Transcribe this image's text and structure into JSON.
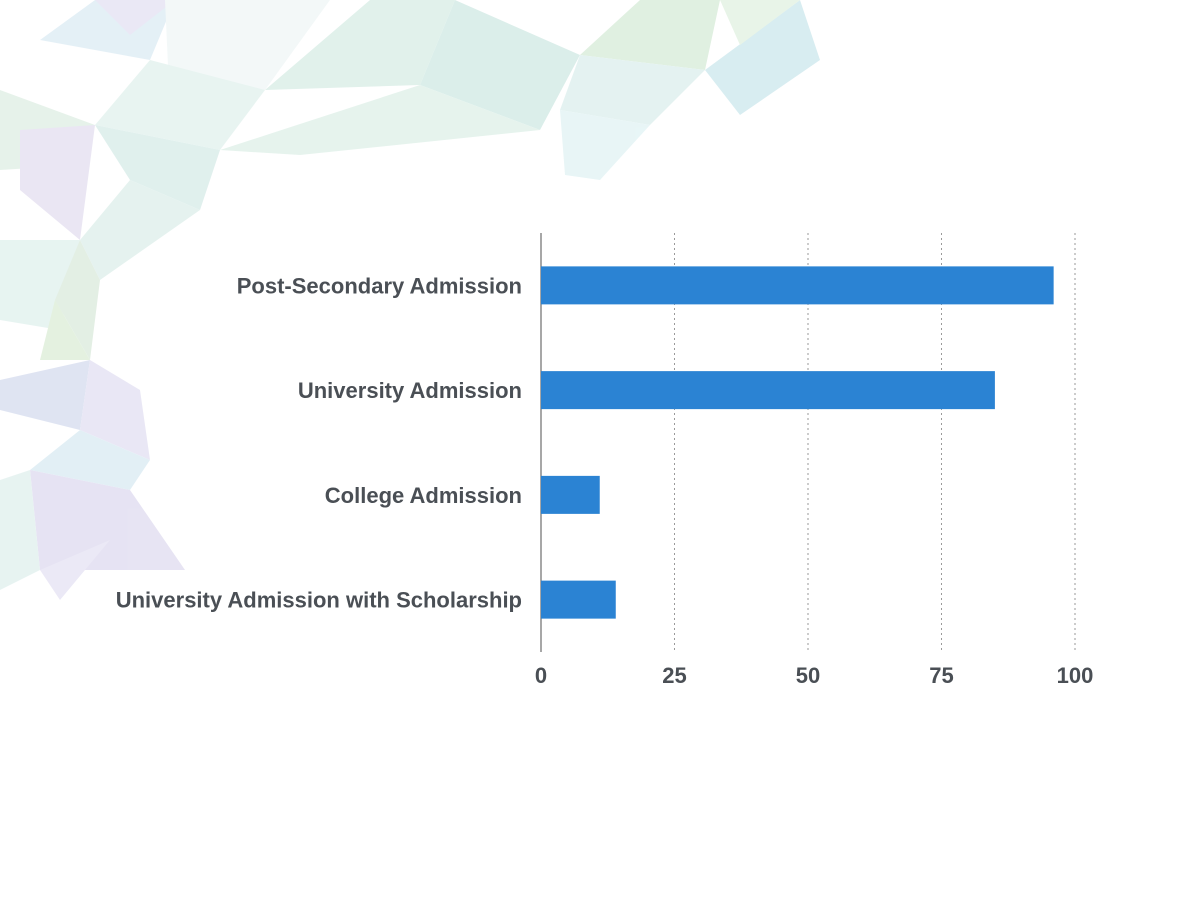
{
  "chart_data": {
    "type": "bar",
    "orientation": "horizontal",
    "categories": [
      "Post-Secondary Admission",
      "University Admission",
      "College Admission",
      "University Admission with Scholarship"
    ],
    "values": [
      96,
      85,
      11,
      14
    ],
    "xticks": [
      "0",
      "25",
      "50",
      "75",
      "100"
    ],
    "xlim": [
      0,
      100
    ],
    "grid": true,
    "bar_color": "#2b83d3"
  },
  "colors": {
    "label_text": "#4a4f55",
    "background": "#ffffff"
  },
  "decoration": "pastel-low-poly-triangles-icon"
}
